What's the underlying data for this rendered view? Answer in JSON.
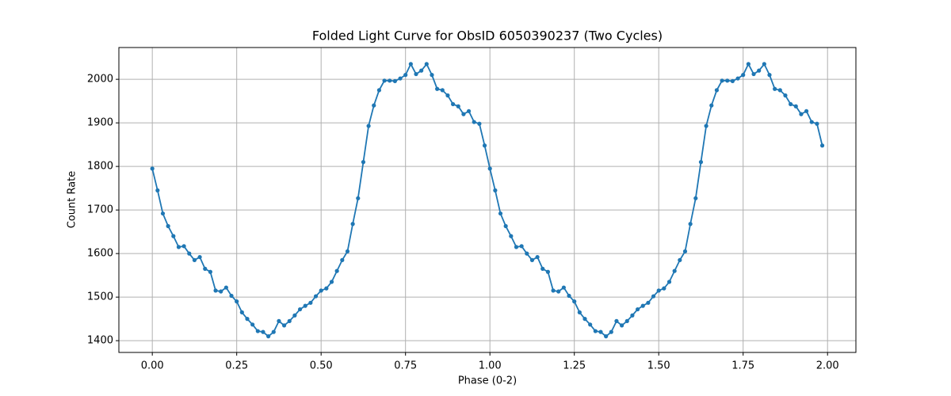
{
  "chart_data": {
    "type": "line",
    "title": "Folded Light Curve for ObsID 6050390237 (Two Cycles)",
    "x_label": "Phase (0-2)",
    "y_label": "Count Rate",
    "x": [
      0,
      0.015625,
      0.03125,
      0.046875,
      0.0625,
      0.078125,
      0.09375,
      0.109375,
      0.125,
      0.140625,
      0.15625,
      0.171875,
      0.1875,
      0.203125,
      0.21875,
      0.234375,
      0.25,
      0.265625,
      0.28125,
      0.296875,
      0.3125,
      0.328125,
      0.34375,
      0.359375,
      0.375,
      0.390625,
      0.40625,
      0.421875,
      0.4375,
      0.453125,
      0.46875,
      0.484375,
      0.5,
      0.515625,
      0.53125,
      0.546875,
      0.5625,
      0.578125,
      0.59375,
      0.609375,
      0.625,
      0.640625,
      0.65625,
      0.671875,
      0.6875,
      0.703125,
      0.71875,
      0.734375,
      0.75,
      0.765625,
      0.78125,
      0.796875,
      0.8125,
      0.828125,
      0.84375,
      0.859375,
      0.875,
      0.890625,
      0.90625,
      0.921875,
      0.9375,
      0.953125,
      0.96875,
      0.984375,
      1,
      1.015625,
      1.03125,
      1.046875,
      1.0625,
      1.078125,
      1.09375,
      1.109375,
      1.125,
      1.140625,
      1.15625,
      1.171875,
      1.1875,
      1.203125,
      1.21875,
      1.234375,
      1.25,
      1.265625,
      1.28125,
      1.296875,
      1.3125,
      1.328125,
      1.34375,
      1.359375,
      1.375,
      1.390625,
      1.40625,
      1.421875,
      1.4375,
      1.453125,
      1.46875,
      1.484375,
      1.5,
      1.515625,
      1.53125,
      1.546875,
      1.5625,
      1.578125,
      1.59375,
      1.609375,
      1.625,
      1.640625,
      1.65625,
      1.671875,
      1.6875,
      1.703125,
      1.71875,
      1.734375,
      1.75,
      1.765625,
      1.78125,
      1.796875,
      1.8125,
      1.828125,
      1.84375,
      1.859375,
      1.875,
      1.890625,
      1.90625,
      1.921875,
      1.9375,
      1.953125,
      1.96875,
      1.984375
    ],
    "values": [
      1795,
      1745,
      1692,
      1663,
      1640,
      1615,
      1617,
      1600,
      1585,
      1592,
      1565,
      1558,
      1515,
      1513,
      1522,
      1503,
      1490,
      1465,
      1450,
      1437,
      1422,
      1420,
      1410,
      1420,
      1445,
      1435,
      1445,
      1458,
      1472,
      1480,
      1487,
      1502,
      1515,
      1520,
      1535,
      1560,
      1585,
      1605,
      1668,
      1727,
      1810,
      1893,
      1940,
      1975,
      1997,
      1997,
      1996,
      2002,
      2010,
      2035,
      2012,
      2020,
      2035,
      2010,
      1978,
      1975,
      1963,
      1943,
      1938,
      1920,
      1927,
      1902,
      1898,
      1848,
      1795,
      1745,
      1692,
      1663,
      1640,
      1615,
      1617,
      1600,
      1585,
      1592,
      1565,
      1558,
      1515,
      1513,
      1522,
      1503,
      1490,
      1465,
      1450,
      1437,
      1422,
      1420,
      1410,
      1420,
      1445,
      1435,
      1445,
      1458,
      1472,
      1480,
      1487,
      1502,
      1515,
      1520,
      1535,
      1560,
      1585,
      1605,
      1668,
      1727,
      1810,
      1893,
      1940,
      1975,
      1997,
      1997,
      1996,
      2002,
      2010,
      2035,
      2012,
      2020,
      2035,
      2010,
      1978,
      1975,
      1963,
      1943,
      1938,
      1920,
      1927,
      1902,
      1898,
      1848
    ],
    "color": "#1f77b4",
    "xlim": [
      -0.099,
      2.084
    ],
    "ylim": [
      1373,
      2073
    ],
    "xticks": [
      {
        "value": 0,
        "label": "0.00"
      },
      {
        "value": 0.25,
        "label": "0.25"
      },
      {
        "value": 0.5,
        "label": "0.50"
      },
      {
        "value": 0.75,
        "label": "0.75"
      },
      {
        "value": 1,
        "label": "1.00"
      },
      {
        "value": 1.25,
        "label": "1.25"
      },
      {
        "value": 1.5,
        "label": "1.50"
      },
      {
        "value": 1.75,
        "label": "1.75"
      },
      {
        "value": 2,
        "label": "2.00"
      }
    ],
    "yticks": [
      1400,
      1500,
      1600,
      1700,
      1800,
      1900,
      2000
    ],
    "grid": true
  }
}
